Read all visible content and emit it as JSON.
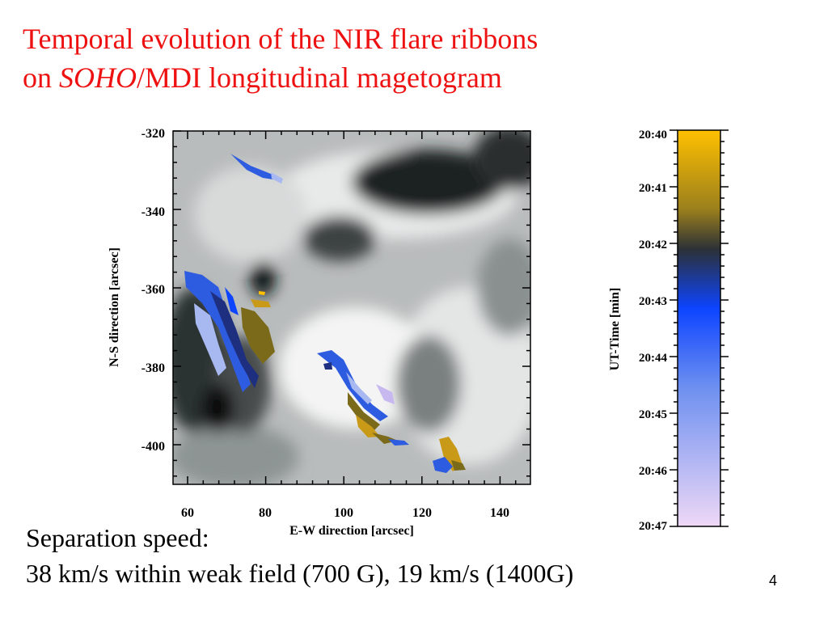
{
  "title": {
    "line1": "Temporal evolution of the NIR flare ribbons",
    "line2_prefix": "on ",
    "line2_italic": "SOHO",
    "line2_suffix": "/MDI longitudinal magetogram"
  },
  "map": {
    "xlabel": "E-W direction [arcsec]",
    "ylabel": "N-S direction [arcsec]",
    "xticks": [
      "60",
      "80",
      "100",
      "120",
      "140"
    ],
    "yticks": [
      "-320",
      "-340",
      "-360",
      "-380",
      "-400"
    ]
  },
  "colorbar": {
    "label": "UT-Time [min]",
    "ticks": [
      "20:40",
      "20:41",
      "20:42",
      "20:43",
      "20:44",
      "20:45",
      "20:46",
      "20:47"
    ],
    "colors": [
      "#ffc000",
      "#9a7f1c",
      "#2c3136",
      "#0d44ff",
      "#6e90f0",
      "#eed8f6"
    ]
  },
  "footer": {
    "line1": "Separation speed:",
    "line2": "38 km/s within weak field (700 G), 19 km/s (1400G)"
  },
  "page_number": "4"
}
